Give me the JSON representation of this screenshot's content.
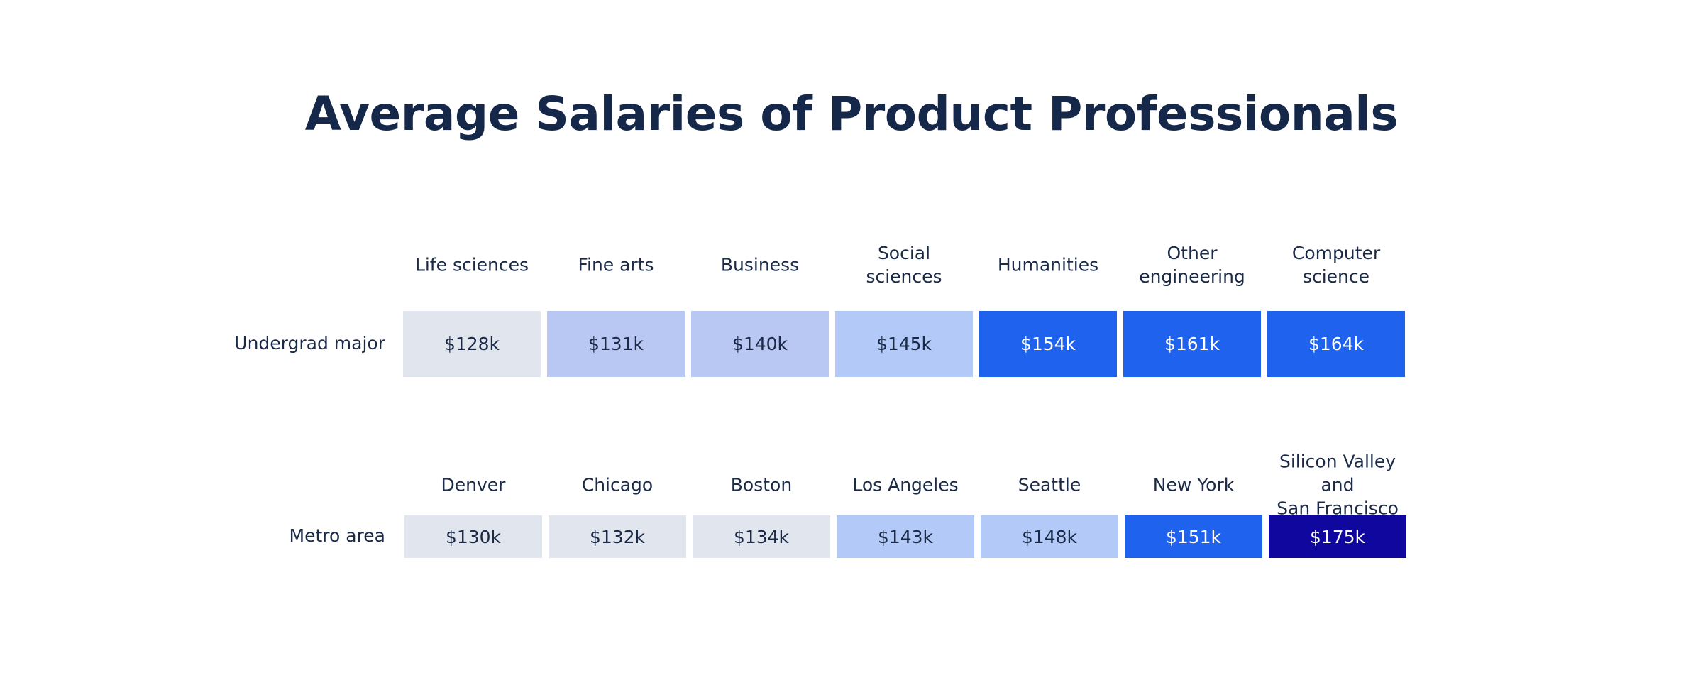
{
  "chart_data": {
    "type": "heatmap",
    "title": "Average Salaries of Product Professionals",
    "rows": [
      {
        "label": "Undergrad major",
        "categories": [
          "Life sciences",
          "Fine arts",
          "Business",
          "Social sciences",
          "Humanities",
          "Other engineering",
          "Computer science"
        ],
        "values": [
          128,
          131,
          140,
          145,
          154,
          161,
          164
        ],
        "labels": [
          "$128k",
          "$131k",
          "$140k",
          "$145k",
          "$154k",
          "$161k",
          "$164k"
        ],
        "colors": [
          "#e1e6ee",
          "#b9c8f2",
          "#b9c8f2",
          "#b3caf8",
          "#1f62ee",
          "#1f62ee",
          "#1f62ee"
        ]
      },
      {
        "label": "Metro area",
        "categories": [
          "Denver",
          "Chicago",
          "Boston",
          "Los Angeles",
          "Seattle",
          "New  York",
          "Silicon Valley and San Francisco"
        ],
        "values": [
          130,
          132,
          134,
          143,
          148,
          151,
          175
        ],
        "labels": [
          "$130k",
          "$132k",
          "$134k",
          "$143k",
          "$148k",
          "$151k",
          "$175k"
        ],
        "colors": [
          "#e1e6ee",
          "#e1e6ee",
          "#e1e6ee",
          "#b3caf8",
          "#b3caf8",
          "#1f62ee",
          "#10079f"
        ]
      }
    ]
  }
}
